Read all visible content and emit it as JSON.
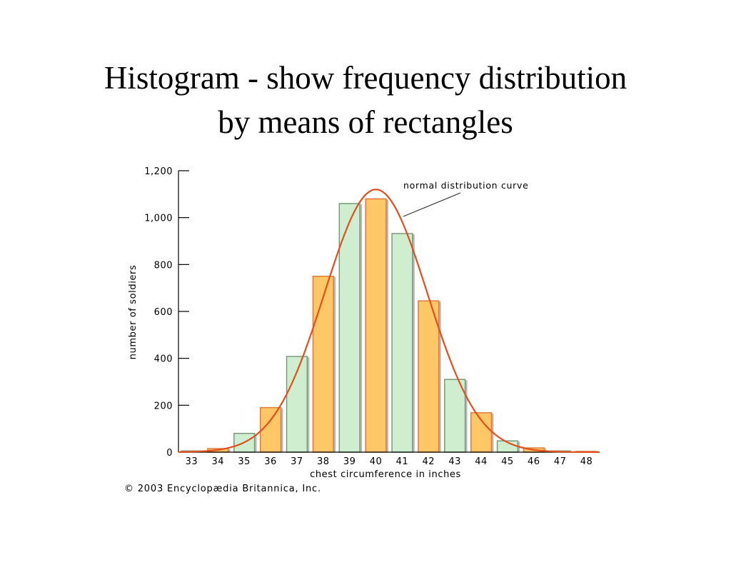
{
  "slide": {
    "title_line1": "Histogram - show frequency distribution",
    "title_line2": "by means of rectangles"
  },
  "chart_data": {
    "type": "bar",
    "categories": [
      "33",
      "34",
      "35",
      "36",
      "37",
      "38",
      "39",
      "40",
      "41",
      "42",
      "43",
      "44",
      "45",
      "46",
      "47",
      "48"
    ],
    "values": [
      5,
      15,
      80,
      190,
      408,
      750,
      1060,
      1080,
      932,
      645,
      310,
      168,
      48,
      18,
      5,
      3
    ],
    "bar_fill_colors": [
      "#cfeecf",
      "#ffc766",
      "#cfeecf",
      "#ffc766",
      "#cfeecf",
      "#ffc766",
      "#cfeecf",
      "#ffc766",
      "#cfeecf",
      "#ffc766",
      "#cfeecf",
      "#ffc766",
      "#cfeecf",
      "#ffc766",
      "#cfeecf",
      "#ffc766"
    ],
    "bar_edge_colors": [
      "#7a9a7a",
      "#e07a3a",
      "#7a9a7a",
      "#e07a3a",
      "#7a9a7a",
      "#e07a3a",
      "#7a9a7a",
      "#e07a3a",
      "#7a9a7a",
      "#e07a3a",
      "#7a9a7a",
      "#e07a3a",
      "#7a9a7a",
      "#e07a3a",
      "#7a9a7a",
      "#e07a3a"
    ],
    "curve": {
      "name": "normal distribution curve",
      "mean": 40,
      "sd": 1.95,
      "peak": 1120,
      "color": "#e0501e"
    },
    "xlabel": "chest circumference in inches",
    "ylabel": "number of soldiers",
    "ylim": [
      0,
      1200
    ],
    "yticks": [
      0,
      200,
      400,
      600,
      800,
      1000,
      1200
    ],
    "ytick_labels": [
      "0",
      "200",
      "400",
      "600",
      "800",
      "1,000",
      "1,200"
    ],
    "annotation": "normal distribution curve",
    "credit": "© 2003 Encyclopædia Britannica, Inc.",
    "grid": false,
    "legend": "none"
  }
}
